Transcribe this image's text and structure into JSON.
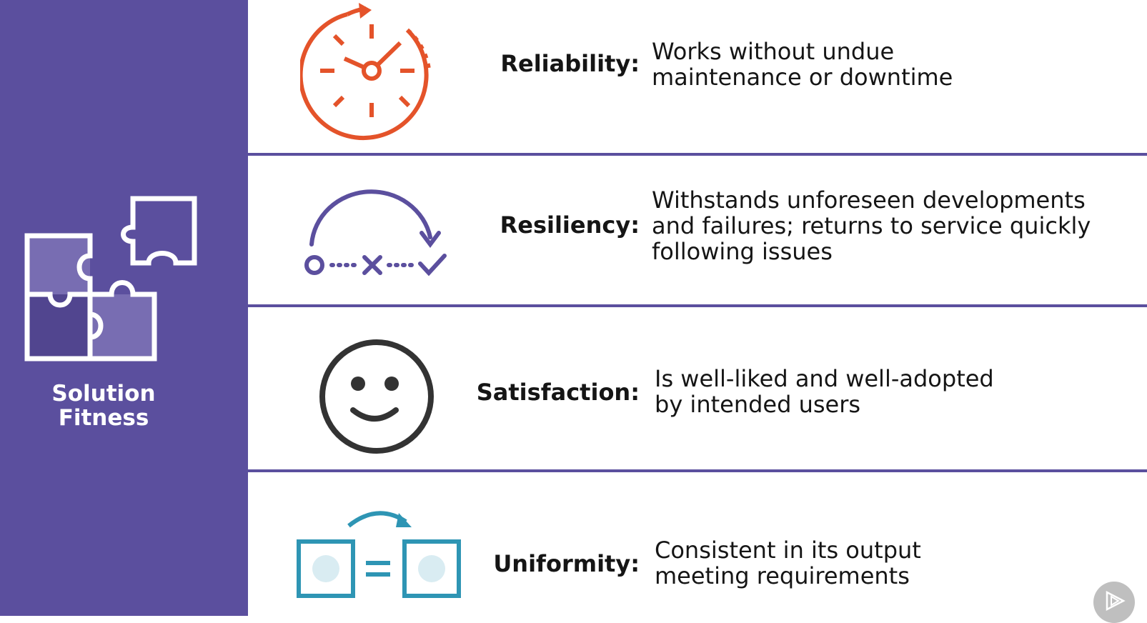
{
  "sidebar": {
    "title_line1": "Solution",
    "title_line2": "Fitness",
    "icon": "puzzle-pieces-icon",
    "background": "#5b4f9e"
  },
  "rows": [
    {
      "term": "Reliability:",
      "description_lines": [
        "Works without undue",
        "maintenance or downtime"
      ],
      "icon": "clock-icon",
      "icon_color": "#e4532a"
    },
    {
      "term": "Resiliency:",
      "description_lines": [
        "Withstands unforeseen developments",
        "and failures; returns to service quickly",
        "following issues"
      ],
      "icon": "recovery-path-icon",
      "icon_color": "#5b4f9e"
    },
    {
      "term": "Satisfaction:",
      "description_lines": [
        "Is well-liked and well-adopted",
        "by intended users"
      ],
      "icon": "smiley-face-icon",
      "icon_color": "#333333"
    },
    {
      "term": "Uniformity:",
      "description_lines": [
        "Consistent in its output",
        "meeting requirements"
      ],
      "icon": "equal-boxes-icon",
      "icon_color": "#2e95b4"
    }
  ],
  "player": {
    "icon": "play-icon"
  }
}
